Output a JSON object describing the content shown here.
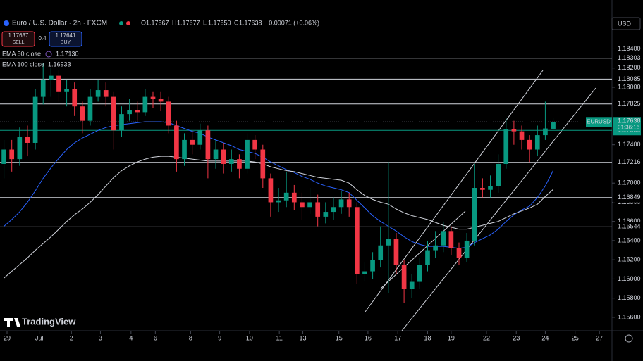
{
  "chart_data": {
    "type": "candlestick",
    "title": "Euro / U.S. Dollar · 2h · FXCM",
    "ohlc_readout": [
      {
        "key": "O",
        "value": "1.17567"
      },
      {
        "key": "H",
        "value": "1.17677"
      },
      {
        "key": "L",
        "value": "1.17550"
      },
      {
        "key": "C",
        "value": "1.17638"
      }
    ],
    "change": "+0.00071 (+0.06%)",
    "sell_price": "1.17637",
    "sell": "SELL",
    "spread": "0.4",
    "buy_price": "1.17641",
    "buy": "BUY",
    "currency": "USD",
    "symbol": "EURUSD",
    "countdown": "01:36:16",
    "brand": "TradingView",
    "up_color": "#089981",
    "down_color": "#f23645",
    "open": [
      1.172,
      1.1735,
      1.1725,
      1.1748,
      1.1742,
      1.179,
      1.1808,
      1.1812,
      1.1795,
      1.1798,
      1.178,
      1.1765,
      1.179,
      1.1797,
      1.179,
      1.1755,
      1.1772,
      1.1776,
      1.1774,
      1.179,
      1.1788,
      1.1785,
      1.176,
      1.1725,
      1.1745,
      1.174,
      1.1755,
      1.1725,
      1.1735,
      1.172,
      1.1725,
      1.1715,
      1.1745,
      1.1735,
      1.1705,
      1.168,
      1.1682,
      1.169,
      1.168,
      1.1675,
      1.168,
      1.1665,
      1.167,
      1.1675,
      1.1683,
      1.1675,
      1.1605,
      1.1608,
      1.162,
      1.1635,
      1.1642,
      1.1615,
      1.159,
      1.1597,
      1.1615,
      1.163,
      1.1635,
      1.165,
      1.1632,
      1.1622,
      1.164,
      1.1695,
      1.1693,
      1.1697,
      1.172,
      1.1756,
      1.1754,
      1.1745,
      1.1735,
      1.175,
      1.17567
    ],
    "high": [
      1.1745,
      1.1745,
      1.1758,
      1.176,
      1.1798,
      1.1825,
      1.182,
      1.1818,
      1.1808,
      1.1805,
      1.1785,
      1.1798,
      1.1808,
      1.1805,
      1.1795,
      1.178,
      1.1788,
      1.1785,
      1.1798,
      1.1795,
      1.1795,
      1.179,
      1.1765,
      1.1752,
      1.1755,
      1.1762,
      1.176,
      1.1745,
      1.1742,
      1.1735,
      1.173,
      1.1752,
      1.175,
      1.174,
      1.171,
      1.1695,
      1.1712,
      1.1698,
      1.169,
      1.1695,
      1.1688,
      1.168,
      1.1685,
      1.1692,
      1.169,
      1.168,
      1.1618,
      1.1628,
      1.1655,
      1.1722,
      1.1648,
      1.162,
      1.1605,
      1.1622,
      1.164,
      1.165,
      1.166,
      1.1655,
      1.1638,
      1.1648,
      1.172,
      1.1705,
      1.1708,
      1.173,
      1.1768,
      1.1765,
      1.176,
      1.175,
      1.176,
      1.1785,
      1.17677
    ],
    "low": [
      1.1705,
      1.1712,
      1.1718,
      1.1728,
      1.1735,
      1.1782,
      1.179,
      1.1785,
      1.178,
      1.177,
      1.1752,
      1.176,
      1.1785,
      1.178,
      1.1735,
      1.1748,
      1.1765,
      1.1765,
      1.177,
      1.1778,
      1.1775,
      1.1752,
      1.1712,
      1.1718,
      1.173,
      1.1735,
      1.1705,
      1.1715,
      1.171,
      1.1712,
      1.1705,
      1.171,
      1.1725,
      1.1695,
      1.1665,
      1.167,
      1.1675,
      1.1672,
      1.1662,
      1.1668,
      1.1655,
      1.1658,
      1.1662,
      1.1668,
      1.1665,
      1.1595,
      1.1598,
      1.16,
      1.1612,
      1.1585,
      1.1605,
      1.1575,
      1.158,
      1.159,
      1.1608,
      1.1622,
      1.1628,
      1.1625,
      1.1615,
      1.1618,
      1.1635,
      1.1685,
      1.1685,
      1.169,
      1.1715,
      1.174,
      1.1735,
      1.1722,
      1.1728,
      1.1745,
      1.1755
    ],
    "close": [
      1.1735,
      1.1725,
      1.1748,
      1.1742,
      1.179,
      1.1808,
      1.1812,
      1.1795,
      1.1798,
      1.178,
      1.1765,
      1.179,
      1.1797,
      1.179,
      1.1755,
      1.1772,
      1.1776,
      1.1774,
      1.179,
      1.1788,
      1.1785,
      1.176,
      1.1725,
      1.1745,
      1.174,
      1.1755,
      1.1725,
      1.1735,
      1.172,
      1.1725,
      1.1715,
      1.1745,
      1.1735,
      1.1705,
      1.168,
      1.1682,
      1.169,
      1.168,
      1.1675,
      1.168,
      1.1665,
      1.167,
      1.1675,
      1.1683,
      1.1675,
      1.1605,
      1.1608,
      1.162,
      1.1635,
      1.1642,
      1.1615,
      1.159,
      1.1597,
      1.1615,
      1.163,
      1.1635,
      1.165,
      1.1632,
      1.1622,
      1.164,
      1.1695,
      1.1693,
      1.1697,
      1.172,
      1.1756,
      1.1754,
      1.1745,
      1.1735,
      1.175,
      1.1757,
      1.17638
    ],
    "series": [
      {
        "name": "EMA 50 close",
        "color": "#2962ff",
        "value_label": "1.17130",
        "values": [
          1.1655,
          1.1662,
          1.167,
          1.168,
          1.1692,
          1.1705,
          1.1716,
          1.1726,
          1.1735,
          1.1742,
          1.1747,
          1.1751,
          1.1755,
          1.1758,
          1.176,
          1.1761,
          1.1762,
          1.1763,
          1.1764,
          1.1764,
          1.1764,
          1.1763,
          1.176,
          1.1757,
          1.1754,
          1.1752,
          1.1748,
          1.1745,
          1.1742,
          1.1739,
          1.1735,
          1.1733,
          1.1731,
          1.1727,
          1.1722,
          1.1718,
          1.1714,
          1.1711,
          1.1707,
          1.1704,
          1.17,
          1.1697,
          1.1695,
          1.1693,
          1.169,
          1.1682,
          1.1674,
          1.1666,
          1.166,
          1.1655,
          1.165,
          1.1644,
          1.1639,
          1.1636,
          1.1634,
          1.1634,
          1.1634,
          1.1633,
          1.1632,
          1.1633,
          1.1638,
          1.1642,
          1.1646,
          1.1652,
          1.166,
          1.1667,
          1.1672,
          1.1676,
          1.1685,
          1.1697,
          1.1713
        ]
      },
      {
        "name": "EMA 100 close",
        "color": "#d1d4dc",
        "value_label": "1.16933",
        "values": [
          1.1601,
          1.1608,
          1.1615,
          1.1622,
          1.163,
          1.1637,
          1.1644,
          1.1652,
          1.166,
          1.1667,
          1.1673,
          1.168,
          1.1688,
          1.1697,
          1.1706,
          1.1713,
          1.1718,
          1.1722,
          1.1725,
          1.1727,
          1.1728,
          1.1728,
          1.1727,
          1.1726,
          1.1725,
          1.1724,
          1.1723,
          1.1723,
          1.1723,
          1.1723,
          1.1723,
          1.1723,
          1.1722,
          1.172,
          1.1717,
          1.1715,
          1.1713,
          1.1712,
          1.171,
          1.1708,
          1.1706,
          1.1705,
          1.1704,
          1.1703,
          1.17,
          1.1693,
          1.1687,
          1.1683,
          1.168,
          1.1678,
          1.1673,
          1.1669,
          1.1666,
          1.1664,
          1.1662,
          1.1659,
          1.1656,
          1.1654,
          1.1652,
          1.1652,
          1.1654,
          1.1656,
          1.1658,
          1.166,
          1.1664,
          1.1668,
          1.1671,
          1.1674,
          1.1678,
          1.1686,
          1.16933
        ]
      }
    ],
    "levels": [
      1.18303,
      1.18085,
      1.17825,
      1.17216,
      1.16849,
      1.16544
    ],
    "price_line": {
      "value": 1.1755,
      "label": "1.17550"
    },
    "xlim": [
      -0.5,
      77.5
    ],
    "xticks": [
      {
        "value": 0.4,
        "label": "29"
      },
      {
        "value": 4.5,
        "label": "Jul"
      },
      {
        "value": 8.6,
        "label": "2"
      },
      {
        "value": 12.3,
        "label": "3"
      },
      {
        "value": 16.2,
        "label": "4"
      },
      {
        "value": 19.3,
        "label": "6"
      },
      {
        "value": 23.8,
        "label": "8"
      },
      {
        "value": 27.5,
        "label": "9"
      },
      {
        "value": 31.3,
        "label": "10"
      },
      {
        "value": 35.1,
        "label": "11"
      },
      {
        "value": 38.1,
        "label": "13"
      },
      {
        "value": 42.7,
        "label": "15"
      },
      {
        "value": 46.4,
        "label": "16"
      },
      {
        "value": 50.2,
        "label": "17"
      },
      {
        "value": 54.0,
        "label": "18"
      },
      {
        "value": 57.0,
        "label": "19"
      },
      {
        "value": 61.5,
        "label": "22"
      },
      {
        "value": 65.3,
        "label": "23"
      },
      {
        "value": 69.0,
        "label": "24"
      },
      {
        "value": 72.8,
        "label": "25"
      },
      {
        "value": 75.9,
        "label": "27"
      }
    ],
    "ylim": [
      1.1546,
      1.1891
    ],
    "yticks": [
      {
        "value": 1.184,
        "label": "1.18400"
      },
      {
        "value": 1.182,
        "label": "1.18200"
      },
      {
        "value": 1.18,
        "label": "1.18000"
      },
      {
        "value": 1.174,
        "label": "1.17400"
      },
      {
        "value": 1.17,
        "label": "1.17000"
      },
      {
        "value": 1.168,
        "label": "1.16800"
      },
      {
        "value": 1.166,
        "label": "1.16600"
      },
      {
        "value": 1.164,
        "label": "1.16400"
      },
      {
        "value": 1.162,
        "label": "1.16200"
      },
      {
        "value": 1.16,
        "label": "1.16000"
      },
      {
        "value": 1.158,
        "label": "1.15800"
      },
      {
        "value": 1.156,
        "label": "1.15600"
      }
    ]
  }
}
